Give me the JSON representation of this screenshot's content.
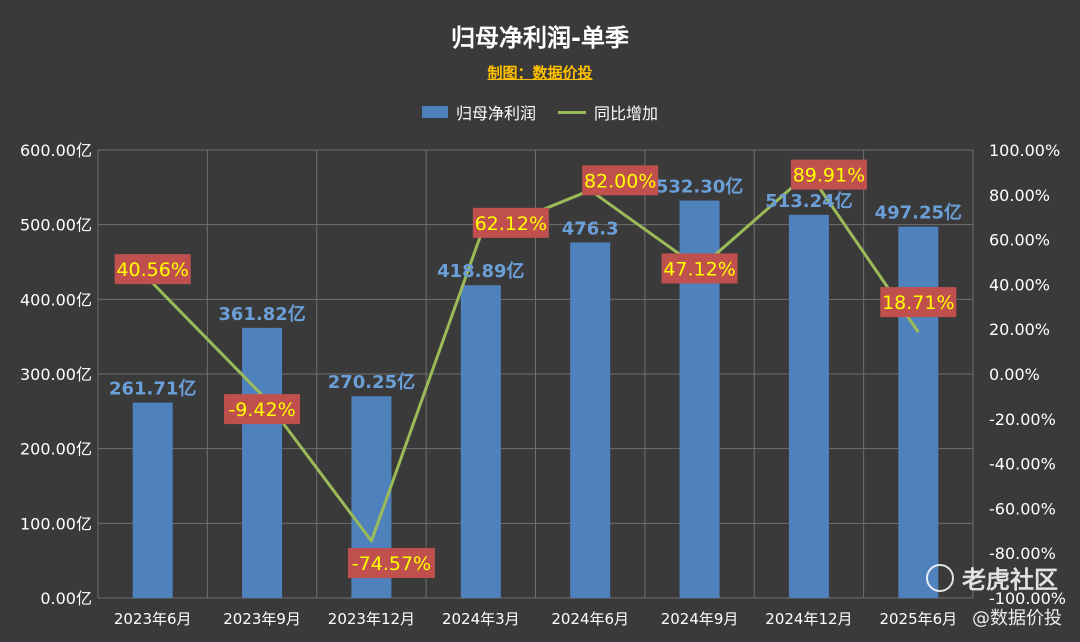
{
  "watermark": {
    "brand": "老虎社区",
    "handle": "@数据价投"
  },
  "chart_data": {
    "type": "bar",
    "title": "归母净利润-单季",
    "subtitle": "制图：数据价投",
    "categories": [
      "2023年6月",
      "2023年9月",
      "2023年12月",
      "2024年3月",
      "2024年6月",
      "2024年9月",
      "2024年12月",
      "2025年6月"
    ],
    "series": [
      {
        "name": "归母净利润",
        "type": "bar",
        "axis": "left",
        "color": "#4f81bd",
        "values": [
          261.71,
          361.82,
          270.25,
          418.89,
          476.3,
          532.3,
          513.24,
          497.25
        ],
        "labels": [
          "261.71亿",
          "361.82亿",
          "270.25亿",
          "418.89亿",
          "476.3",
          "532.30亿",
          "513.24亿",
          "497.25亿"
        ]
      },
      {
        "name": "同比增加",
        "type": "line",
        "axis": "right",
        "color": "#9bbb59",
        "values": [
          40.56,
          -9.42,
          -74.57,
          62.12,
          82.0,
          47.12,
          89.91,
          18.71
        ],
        "labels": [
          "40.56%",
          "-9.42%",
          "-74.57%",
          "62.12%",
          "82.00%",
          "47.12%",
          "89.91%",
          "18.71%"
        ]
      }
    ],
    "y_left": {
      "range": [
        0,
        600
      ],
      "ticks": [
        "0.00亿",
        "100.00亿",
        "200.00亿",
        "300.00亿",
        "400.00亿",
        "500.00亿",
        "600.00亿"
      ]
    },
    "y_right": {
      "range": [
        -100,
        100
      ],
      "ticks": [
        "-100.00%",
        "-80.00%",
        "-60.00%",
        "-40.00%",
        "-20.00%",
        "0.00%",
        "20.00%",
        "40.00%",
        "60.00%",
        "80.00%",
        "100.00%"
      ]
    },
    "grid": true,
    "legend_position": "top"
  }
}
